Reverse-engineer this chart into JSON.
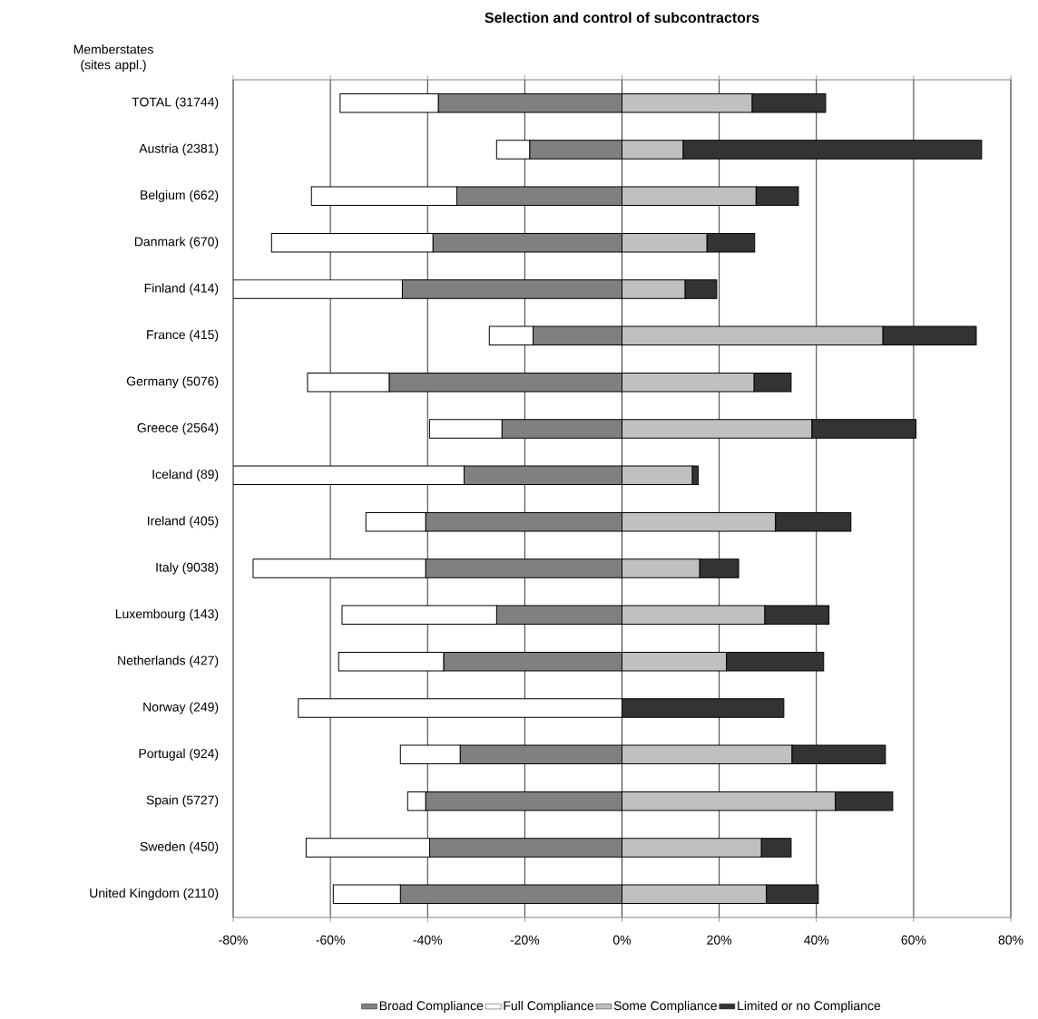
{
  "chart_data": {
    "type": "bar",
    "orientation": "horizontal",
    "stacked": true,
    "title": "Selection and control of subcontractors",
    "ylabel": "Memberstates (sites appl.)",
    "categories": [
      "TOTAL (31744)",
      "Austria (2381)",
      "Belgium (662)",
      "Danmark (670)",
      "Finland (414)",
      "France (415)",
      "Germany (5076)",
      "Greece (2564)",
      "Iceland (89)",
      "Ireland (405)",
      "Italy (9038)",
      "Luxembourg (143)",
      "Netherlands (427)",
      "Norway (249)",
      "Portugal (924)",
      "Spain (5727)",
      "Sweden (450)",
      "United Kingdom (2110)"
    ],
    "series": [
      {
        "name": "Broad Compliance",
        "color": "#808080",
        "values": [
          -37.8,
          -19.0,
          -34.0,
          -38.9,
          -45.2,
          -18.3,
          -47.9,
          -24.7,
          -32.5,
          -40.4,
          -40.4,
          -25.8,
          -36.7,
          0,
          -33.3,
          -40.4,
          -39.6,
          -45.6
        ]
      },
      {
        "name": "Full Compliance",
        "color": "#ffffff",
        "values": [
          -20.2,
          -6.8,
          -29.9,
          -33.2,
          -34.8,
          -9.0,
          -16.8,
          -14.9,
          -47.5,
          -12.3,
          -35.5,
          -31.8,
          -21.6,
          -66.6,
          -12.3,
          -3.7,
          -25.4,
          -13.8
        ]
      },
      {
        "name": "Some Compliance",
        "color": "#c0c0c0",
        "values": [
          26.8,
          12.6,
          27.6,
          17.5,
          13.0,
          53.7,
          27.2,
          39.1,
          14.5,
          31.6,
          16.0,
          29.4,
          21.5,
          0,
          35.0,
          43.9,
          28.7,
          29.7
        ]
      },
      {
        "name": "Limited or no Compliance",
        "color": "#333333",
        "values": [
          15.1,
          61.4,
          8.7,
          9.8,
          6.5,
          19.2,
          7.6,
          21.4,
          1.2,
          15.5,
          8.0,
          13.2,
          20.0,
          33.3,
          19.2,
          11.8,
          6.1,
          10.7
        ]
      }
    ],
    "xlim": [
      -80,
      80
    ],
    "xticks": [
      {
        "value": -80,
        "label": "-80%"
      },
      {
        "value": -60,
        "label": "-60%"
      },
      {
        "value": -40,
        "label": "-40%"
      },
      {
        "value": -20,
        "label": "-20%"
      },
      {
        "value": 0,
        "label": "0%"
      },
      {
        "value": 20,
        "label": "20%"
      },
      {
        "value": 40,
        "label": "40%"
      },
      {
        "value": 60,
        "label": "60%"
      },
      {
        "value": 80,
        "label": "80%"
      }
    ],
    "grid": "x",
    "legend": "bottom"
  }
}
